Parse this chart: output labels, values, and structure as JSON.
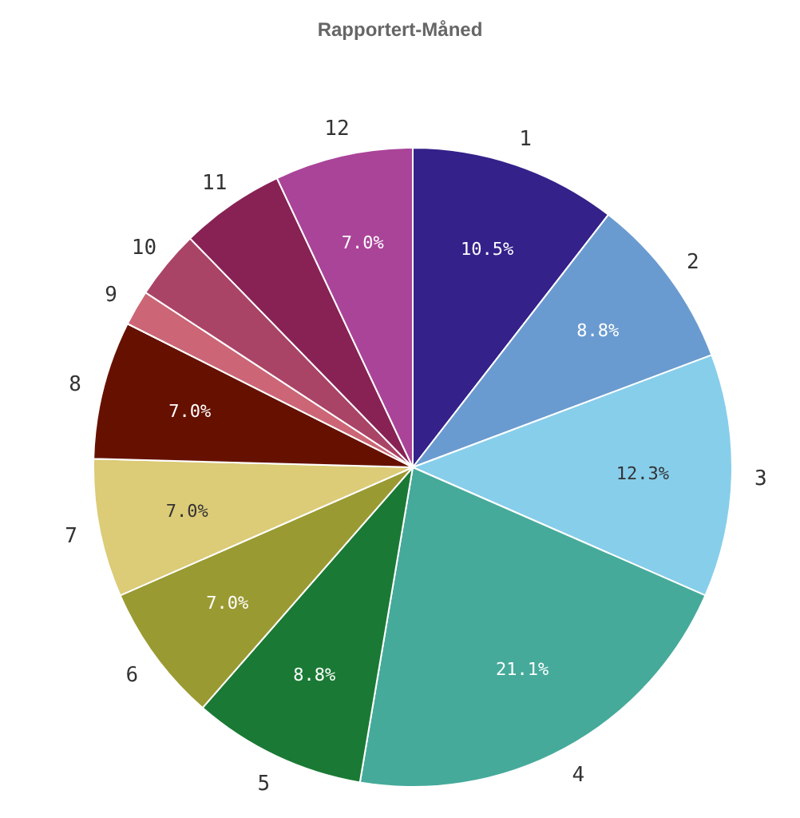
{
  "chart_data": {
    "type": "pie",
    "title": "Rapportert-Måned",
    "categories": [
      "1",
      "2",
      "3",
      "4",
      "5",
      "6",
      "7",
      "8",
      "9",
      "10",
      "11",
      "12"
    ],
    "values": [
      10.5,
      8.8,
      12.3,
      21.1,
      8.8,
      7.0,
      7.0,
      7.0,
      1.8,
      3.5,
      5.3,
      7.0
    ],
    "value_labels": [
      "10.5%",
      "8.8%",
      "12.3%",
      "21.1%",
      "8.8%",
      "7.0%",
      "7.0%",
      "7.0%",
      null,
      null,
      null,
      "7.0%"
    ],
    "colors": [
      "#35218a",
      "#6a9bd0",
      "#87ceeb",
      "#46aa9a",
      "#1a7a35",
      "#9a9a33",
      "#dccb77",
      "#661100",
      "#cc6677",
      "#aa4466",
      "#882255",
      "#aa4499"
    ]
  }
}
